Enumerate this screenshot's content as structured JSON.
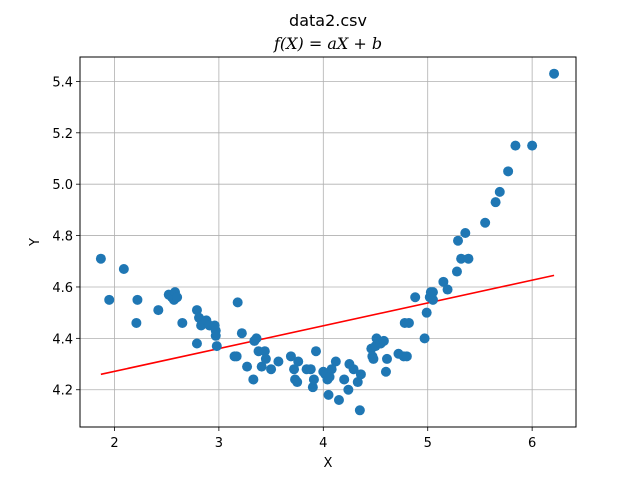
{
  "chart_data": {
    "type": "scatter",
    "title": "data2.csv",
    "subtitle": "f(X) = aX + b",
    "xlabel": "X",
    "ylabel": "Y",
    "xlim": [
      1.67,
      6.42
    ],
    "ylim": [
      4.055,
      5.495
    ],
    "xticks": [
      2,
      3,
      4,
      5,
      6
    ],
    "yticks": [
      4.2,
      4.4,
      4.6,
      4.8,
      5.0,
      5.2,
      5.4
    ],
    "xtick_labels": [
      "2",
      "3",
      "4",
      "5",
      "6"
    ],
    "ytick_labels": [
      "4.2",
      "4.4",
      "4.6",
      "4.8",
      "5.0",
      "5.2",
      "5.4"
    ],
    "grid": true,
    "colors": {
      "points": "#1f77b4",
      "fit_line": "#ff0000",
      "grid": "#b0b0b0"
    },
    "series": [
      {
        "kind": "points",
        "x": [
          1.87,
          1.95,
          2.09,
          2.21,
          2.22,
          2.42,
          2.52,
          2.55,
          2.57,
          2.58,
          2.6,
          2.65,
          2.79,
          2.79,
          2.81,
          2.83,
          2.88,
          2.91,
          2.96,
          2.97,
          2.97,
          2.98,
          3.15,
          3.17,
          3.18,
          3.22,
          3.27,
          3.33,
          3.34,
          3.36,
          3.38,
          3.41,
          3.44,
          3.45,
          3.5,
          3.57,
          3.69,
          3.72,
          3.73,
          3.75,
          3.76,
          3.84,
          3.88,
          3.9,
          3.91,
          3.93,
          4.0,
          4.02,
          4.04,
          4.05,
          4.06,
          4.08,
          4.12,
          4.15,
          4.2,
          4.24,
          4.25,
          4.29,
          4.33,
          4.35,
          4.36,
          4.46,
          4.47,
          4.48,
          4.5,
          4.51,
          4.55,
          4.58,
          4.6,
          4.61,
          4.72,
          4.77,
          4.78,
          4.8,
          4.82,
          4.88,
          4.97,
          4.99,
          5.02,
          5.03,
          5.05,
          5.05,
          5.15,
          5.19,
          5.28,
          5.29,
          5.32,
          5.36,
          5.39,
          5.55,
          5.65,
          5.69,
          5.77,
          5.84,
          6.0,
          6.21
        ],
        "y": [
          4.71,
          4.55,
          4.67,
          4.46,
          4.55,
          4.51,
          4.57,
          4.56,
          4.55,
          4.58,
          4.56,
          4.46,
          4.51,
          4.38,
          4.48,
          4.45,
          4.47,
          4.45,
          4.45,
          4.43,
          4.41,
          4.37,
          4.33,
          4.33,
          4.54,
          4.42,
          4.29,
          4.24,
          4.39,
          4.4,
          4.35,
          4.29,
          4.35,
          4.32,
          4.28,
          4.31,
          4.33,
          4.28,
          4.24,
          4.23,
          4.31,
          4.28,
          4.28,
          4.21,
          4.24,
          4.35,
          4.27,
          4.26,
          4.24,
          4.18,
          4.25,
          4.28,
          4.31,
          4.16,
          4.24,
          4.2,
          4.3,
          4.28,
          4.23,
          4.12,
          4.26,
          4.36,
          4.33,
          4.32,
          4.37,
          4.4,
          4.38,
          4.39,
          4.27,
          4.32,
          4.34,
          4.33,
          4.46,
          4.33,
          4.46,
          4.56,
          4.4,
          4.5,
          4.56,
          4.58,
          4.55,
          4.58,
          4.62,
          4.59,
          4.66,
          4.78,
          4.71,
          4.81,
          4.71,
          4.85,
          4.93,
          4.97,
          5.05,
          5.15,
          5.15,
          5.43
        ]
      },
      {
        "kind": "line",
        "x": [
          1.87,
          6.21
        ],
        "y": [
          4.26,
          4.645
        ]
      }
    ]
  }
}
